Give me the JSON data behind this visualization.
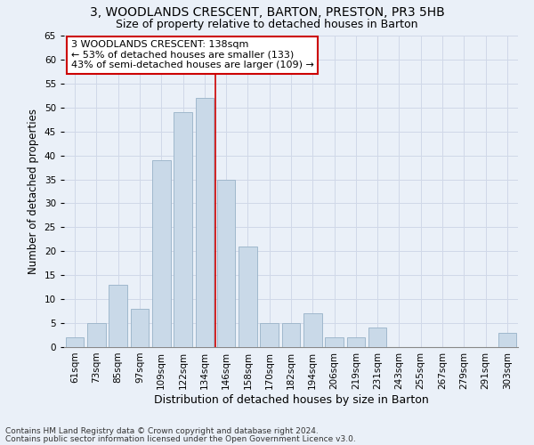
{
  "title1": "3, WOODLANDS CRESCENT, BARTON, PRESTON, PR3 5HB",
  "title2": "Size of property relative to detached houses in Barton",
  "xlabel": "Distribution of detached houses by size in Barton",
  "ylabel": "Number of detached properties",
  "categories": [
    "61sqm",
    "73sqm",
    "85sqm",
    "97sqm",
    "109sqm",
    "122sqm",
    "134sqm",
    "146sqm",
    "158sqm",
    "170sqm",
    "182sqm",
    "194sqm",
    "206sqm",
    "219sqm",
    "231sqm",
    "243sqm",
    "255sqm",
    "267sqm",
    "279sqm",
    "291sqm",
    "303sqm"
  ],
  "values": [
    2,
    5,
    13,
    8,
    39,
    49,
    52,
    35,
    21,
    5,
    5,
    7,
    2,
    2,
    4,
    0,
    0,
    0,
    0,
    0,
    3
  ],
  "bar_color": "#c9d9e8",
  "bar_edge_color": "#a0b8cc",
  "grid_color": "#d0d8e8",
  "background_color": "#eaf0f8",
  "property_line_x": 6.5,
  "annotation_text": "3 WOODLANDS CRESCENT: 138sqm\n← 53% of detached houses are smaller (133)\n43% of semi-detached houses are larger (109) →",
  "annotation_box_color": "#ffffff",
  "annotation_box_edge_color": "#cc0000",
  "ylim": [
    0,
    65
  ],
  "yticks": [
    0,
    5,
    10,
    15,
    20,
    25,
    30,
    35,
    40,
    45,
    50,
    55,
    60,
    65
  ],
  "footer_line1": "Contains HM Land Registry data © Crown copyright and database right 2024.",
  "footer_line2": "Contains public sector information licensed under the Open Government Licence v3.0.",
  "title1_fontsize": 10,
  "title2_fontsize": 9,
  "xlabel_fontsize": 9,
  "ylabel_fontsize": 8.5,
  "tick_fontsize": 7.5,
  "annotation_fontsize": 8,
  "footer_fontsize": 6.5
}
